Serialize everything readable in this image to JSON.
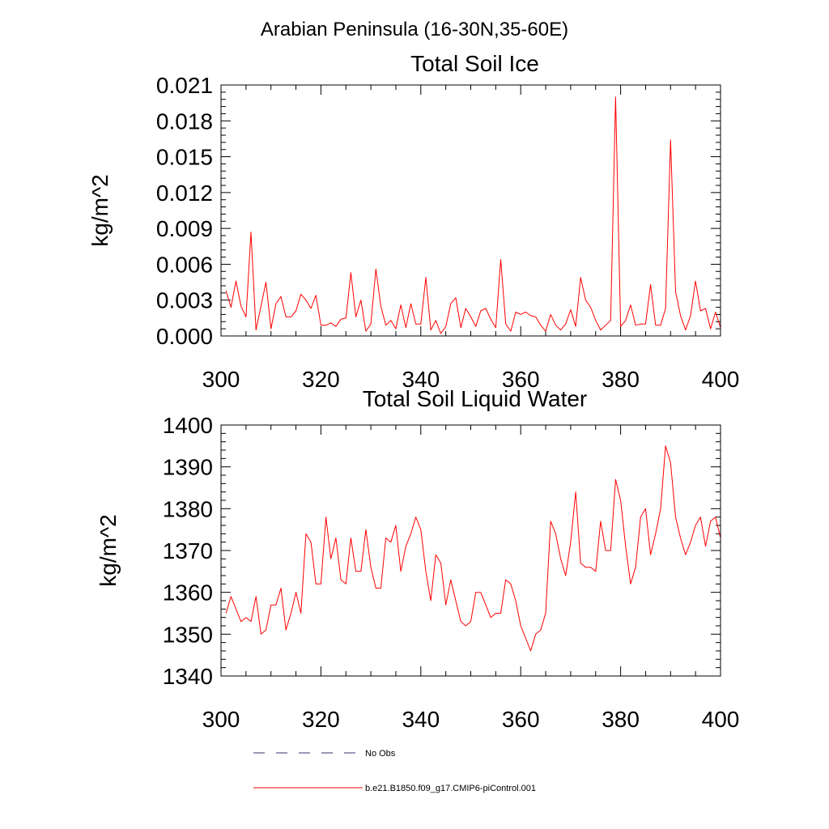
{
  "main_title": "Arabian Peninsula (16-30N,35-60E)",
  "chart_data": [
    {
      "type": "line",
      "title": "Total Soil Ice",
      "xlabel": "",
      "ylabel": "kg/m^2",
      "xlim": [
        300,
        400
      ],
      "ylim": [
        0,
        0.021
      ],
      "xticks": [
        300,
        320,
        340,
        360,
        380,
        400
      ],
      "xtick_labels": [
        "300",
        "320",
        "340",
        "360",
        "380",
        "400"
      ],
      "yticks": [
        0,
        0.003,
        0.006,
        0.009,
        0.012,
        0.015,
        0.018,
        0.021
      ],
      "ytick_labels": [
        "0.000",
        "0.003",
        "0.006",
        "0.009",
        "0.012",
        "0.015",
        "0.018",
        "0.021"
      ],
      "series": [
        {
          "name": "b.e21.B1850.f09_g17.CMIP6-piControl.001",
          "color": "#ff0000",
          "x": [
            301,
            302,
            303,
            304,
            305,
            306,
            307,
            308,
            309,
            310,
            311,
            312,
            313,
            314,
            315,
            316,
            317,
            318,
            319,
            320,
            321,
            322,
            323,
            324,
            325,
            326,
            327,
            328,
            329,
            330,
            331,
            332,
            333,
            334,
            335,
            336,
            337,
            338,
            339,
            340,
            341,
            342,
            343,
            344,
            345,
            346,
            347,
            348,
            349,
            350,
            351,
            352,
            353,
            354,
            355,
            356,
            357,
            358,
            359,
            360,
            361,
            362,
            363,
            364,
            365,
            366,
            367,
            368,
            369,
            370,
            371,
            372,
            373,
            374,
            375,
            376,
            377,
            378,
            379,
            380,
            381,
            382,
            383,
            384,
            385,
            386,
            387,
            388,
            389,
            390,
            391,
            392,
            393,
            394,
            395,
            396,
            397,
            398,
            399,
            400
          ],
          "values": [
            0.0038,
            0.0024,
            0.0046,
            0.0025,
            0.0016,
            0.0087,
            0.0005,
            0.0025,
            0.0045,
            0.0006,
            0.0027,
            0.0033,
            0.0016,
            0.0016,
            0.0021,
            0.0035,
            0.003,
            0.0023,
            0.0034,
            0.0009,
            0.0009,
            0.0011,
            0.0008,
            0.0014,
            0.0015,
            0.0053,
            0.0016,
            0.003,
            0.0004,
            0.001,
            0.0056,
            0.0025,
            0.0009,
            0.0013,
            0.0006,
            0.0026,
            0.0007,
            0.0027,
            0.001,
            0.001,
            0.0049,
            0.0005,
            0.0013,
            0.0002,
            0.0008,
            0.0027,
            0.0032,
            0.0007,
            0.0023,
            0.0016,
            0.0008,
            0.0021,
            0.0023,
            0.0014,
            0.0007,
            0.0064,
            0.001,
            0.0004,
            0.002,
            0.0018,
            0.002,
            0.0017,
            0.0016,
            0.0009,
            0.0004,
            0.0018,
            0.0009,
            0.0005,
            0.001,
            0.0022,
            0.0008,
            0.0049,
            0.003,
            0.0024,
            0.0013,
            0.0005,
            0.0009,
            0.0013,
            0.02,
            0.0008,
            0.0013,
            0.0026,
            0.0009,
            0.001,
            0.001,
            0.0043,
            0.0009,
            0.0009,
            0.0023,
            0.0164,
            0.0037,
            0.0017,
            0.0005,
            0.0017,
            0.0046,
            0.0021,
            0.0023,
            0.0006,
            0.002,
            0.0007
          ]
        }
      ]
    },
    {
      "type": "line",
      "title": "Total Soil Liquid Water",
      "xlabel": "",
      "ylabel": "kg/m^2",
      "xlim": [
        300,
        400
      ],
      "ylim": [
        1340,
        1400
      ],
      "xticks": [
        300,
        320,
        340,
        360,
        380,
        400
      ],
      "xtick_labels": [
        "300",
        "320",
        "340",
        "360",
        "380",
        "400"
      ],
      "yticks": [
        1340,
        1350,
        1360,
        1370,
        1380,
        1390,
        1400
      ],
      "ytick_labels": [
        "1340",
        "1350",
        "1360",
        "1370",
        "1380",
        "1390",
        "1400"
      ],
      "series": [
        {
          "name": "b.e21.B1850.f09_g17.CMIP6-piControl.001",
          "color": "#ff0000",
          "x": [
            301,
            302,
            303,
            304,
            305,
            306,
            307,
            308,
            309,
            310,
            311,
            312,
            313,
            314,
            315,
            316,
            317,
            318,
            319,
            320,
            321,
            322,
            323,
            324,
            325,
            326,
            327,
            328,
            329,
            330,
            331,
            332,
            333,
            334,
            335,
            336,
            337,
            338,
            339,
            340,
            341,
            342,
            343,
            344,
            345,
            346,
            347,
            348,
            349,
            350,
            351,
            352,
            353,
            354,
            355,
            356,
            357,
            358,
            359,
            360,
            361,
            362,
            363,
            364,
            365,
            366,
            367,
            368,
            369,
            370,
            371,
            372,
            373,
            374,
            375,
            376,
            377,
            378,
            379,
            380,
            381,
            382,
            383,
            384,
            385,
            386,
            387,
            388,
            389,
            390,
            391,
            392,
            393,
            394,
            395,
            396,
            397,
            398,
            399,
            400
          ],
          "values": [
            1355,
            1359,
            1356,
            1353,
            1354,
            1353,
            1359,
            1350,
            1351,
            1357,
            1357,
            1361,
            1351,
            1355,
            1360,
            1355,
            1374,
            1372,
            1362,
            1362,
            1378,
            1368,
            1373,
            1363,
            1362,
            1373,
            1365,
            1365,
            1375,
            1366,
            1361,
            1361,
            1373,
            1372,
            1376,
            1365,
            1371,
            1374,
            1378,
            1375,
            1365,
            1358,
            1369,
            1367,
            1357,
            1363,
            1358,
            1353,
            1352,
            1353,
            1360,
            1360,
            1357,
            1354,
            1355,
            1355,
            1363,
            1362,
            1358,
            1352,
            1349,
            1346,
            1350,
            1351,
            1355,
            1377,
            1374,
            1368,
            1364,
            1372,
            1384,
            1367,
            1366,
            1366,
            1365,
            1377,
            1370,
            1370,
            1387,
            1382,
            1371,
            1362,
            1366,
            1378,
            1380,
            1369,
            1374,
            1380,
            1395,
            1391,
            1378,
            1373,
            1369,
            1372,
            1376,
            1378,
            1371,
            1377,
            1378,
            1373
          ]
        }
      ]
    }
  ],
  "legend": {
    "items": [
      {
        "label": "No Obs",
        "style": "dashed",
        "color": "#33336e"
      },
      {
        "label": "b.e21.B1850.f09_g17.CMIP6-piControl.001",
        "style": "solid",
        "color": "#ff0000"
      }
    ]
  }
}
